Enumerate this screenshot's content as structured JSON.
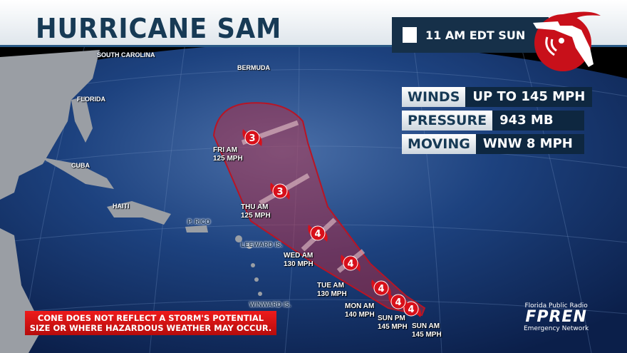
{
  "header": {
    "title": "HURRICANE SAM",
    "advisory_time": "11 AM EDT SUN"
  },
  "stats": [
    {
      "label": "WINDS",
      "value": "UP TO 145 MPH"
    },
    {
      "label": "PRESSURE",
      "value": "943 MB"
    },
    {
      "label": "MOVING",
      "value": "WNW 8 MPH"
    }
  ],
  "places": {
    "sc": "SOUTH CAROLINA",
    "bermuda": "BERMUDA",
    "florida": "FLORIDA",
    "cuba": "CUBA",
    "haiti": "HAITI",
    "prico": "P. RICO",
    "leeward": "LEEWARD IS.",
    "winward": "WINWARD IS."
  },
  "forecast": [
    {
      "time": "SUN AM",
      "wind": "145 MPH",
      "category": "4"
    },
    {
      "time": "SUN PM",
      "wind": "145 MPH",
      "category": "4"
    },
    {
      "time": "MON AM",
      "wind": "140 MPH",
      "category": "4"
    },
    {
      "time": "TUE AM",
      "wind": "130 MPH",
      "category": "4"
    },
    {
      "time": "WED AM",
      "wind": "130 MPH",
      "category": "4"
    },
    {
      "time": "THU AM",
      "wind": "125 MPH",
      "category": "3"
    },
    {
      "time": "FRI AM",
      "wind": "125 MPH",
      "category": "3"
    }
  ],
  "disclaimer": {
    "line1": "CONE DOES NOT REFLECT A STORM'S POTENTIAL",
    "line2": "SIZE OR WHERE HAZARDOUS WEATHER MAY OCCUR."
  },
  "brand": {
    "top": "Florida Public Radio",
    "name": "FPREN",
    "bottom": "Emergency Network"
  },
  "colors": {
    "cone": "#c8283a",
    "storm_icon": "#d8101a",
    "ocean": "#1a3b78",
    "header_text": "#173a55"
  }
}
